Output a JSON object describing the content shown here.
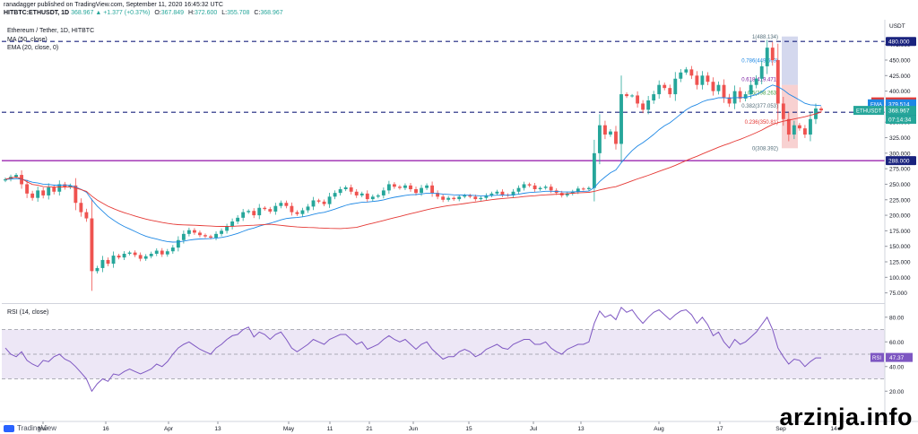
{
  "header": {
    "publisher": "ranadagger published on TradingView.com, September 11, 2020 16:45:32 UTC",
    "symbol": "HITBTC:ETHUSDT, 1D",
    "change": "368.967 ▲ +1.377 (+0.37%)",
    "open_label": "O:",
    "open": "367.849",
    "high_label": "H:",
    "high": "372.600",
    "low_label": "L:",
    "low": "355.708",
    "close_label": "C:",
    "close": "368.967"
  },
  "watermark": "arzinja.info",
  "logo_text": "TradingView",
  "colors": {
    "up": "#26a69a",
    "down": "#ef5350",
    "ma": "#1e88e5",
    "ema": "#e53935",
    "rsi": "#7e57c2",
    "hline_dash": "#1a237e",
    "support": "#9c27b0",
    "rsi_band": "#ede7f6"
  },
  "chart_data": {
    "type": "candlestick",
    "title": "Ethereum / Tether, 1D, HITBTC",
    "price_axis": {
      "ticks": [
        "475.000",
        "450.000",
        "425.000",
        "400.000",
        "375.000",
        "350.000",
        "325.000",
        "300.000",
        "275.000",
        "250.000",
        "225.000",
        "200.000",
        "175.000",
        "150.000",
        "125.000",
        "100.000",
        "75.000"
      ],
      "currency": "USDT",
      "range": [
        60,
        515
      ]
    },
    "time_axis": {
      "labels": [
        "Mar",
        "16",
        "Apr",
        "13",
        "May",
        "11",
        "21",
        "Jun",
        "15",
        "Jul",
        "13",
        "Aug",
        "17",
        "Sep",
        "14"
      ]
    },
    "indicators": [
      {
        "name": "MA (50, close)",
        "value": "382.666",
        "tag": "MA"
      },
      {
        "name": "EMA (20, close, 0)",
        "value": "379.514",
        "tag": "EMA"
      }
    ],
    "last_price": {
      "tag": "ETHUSDT",
      "value": "368.967",
      "countdown": "07:14:34"
    },
    "horizontal_lines": [
      {
        "value": 480,
        "label": "480.000",
        "style": "dashed"
      },
      {
        "value": 366,
        "label": "366.000",
        "style": "dashed"
      },
      {
        "value": 288,
        "label": "288.000",
        "style": "solid"
      }
    ],
    "fibonacci": [
      {
        "level": "1",
        "price": "(488.134)"
      },
      {
        "level": "0.786",
        "price": "(449.669)"
      },
      {
        "level": "0.618",
        "price": "(419.471)"
      },
      {
        "level": "0.5",
        "price": "(398.263)"
      },
      {
        "level": "0.382",
        "price": "(377.053)"
      },
      {
        "level": "0.236",
        "price": "(350.81)"
      },
      {
        "level": "0",
        "price": "(308.392)"
      }
    ],
    "close_series": [
      258,
      262,
      265,
      250,
      235,
      228,
      240,
      232,
      245,
      238,
      250,
      245,
      248,
      220,
      205,
      195,
      110,
      115,
      128,
      122,
      135,
      132,
      138,
      140,
      136,
      130,
      134,
      138,
      143,
      137,
      142,
      148,
      160,
      170,
      176,
      172,
      168,
      166,
      164,
      170,
      175,
      182,
      190,
      196,
      205,
      207,
      200,
      212,
      210,
      206,
      215,
      220,
      215,
      205,
      202,
      208,
      214,
      224,
      222,
      218,
      230,
      236,
      242,
      245,
      238,
      232,
      235,
      226,
      230,
      232,
      240,
      250,
      246,
      244,
      248,
      242,
      236,
      244,
      248,
      236,
      230,
      225,
      228,
      226,
      230,
      232,
      230,
      226,
      228,
      232,
      235,
      238,
      233,
      232,
      238,
      244,
      250,
      248,
      242,
      244,
      246,
      240,
      236,
      232,
      235,
      238,
      243,
      242,
      244,
      300,
      345,
      330,
      335,
      315,
      395,
      392,
      393,
      380,
      370,
      385,
      395,
      410,
      405,
      395,
      420,
      430,
      435,
      425,
      410,
      425,
      415,
      400,
      410,
      390,
      380,
      400,
      388,
      395,
      410,
      420,
      440,
      470,
      450,
      380,
      355,
      330,
      345,
      340,
      330,
      355,
      372,
      369
    ],
    "rsi": {
      "label": "RSI (14, close)",
      "value": "47.37",
      "ticks": [
        "80.00",
        "60.00",
        "40.00",
        "20.00"
      ],
      "band": [
        30,
        70
      ],
      "values": [
        55,
        50,
        48,
        52,
        45,
        42,
        40,
        45,
        44,
        48,
        50,
        46,
        44,
        40,
        35,
        30,
        20,
        26,
        30,
        28,
        34,
        33,
        36,
        38,
        36,
        34,
        36,
        38,
        42,
        40,
        44,
        50,
        55,
        58,
        60,
        57,
        54,
        52,
        50,
        55,
        58,
        62,
        65,
        66,
        70,
        72,
        64,
        68,
        66,
        62,
        66,
        68,
        62,
        55,
        52,
        55,
        58,
        62,
        60,
        58,
        62,
        64,
        66,
        66,
        62,
        58,
        60,
        54,
        56,
        58,
        62,
        65,
        62,
        60,
        62,
        58,
        54,
        58,
        60,
        54,
        50,
        46,
        48,
        48,
        52,
        54,
        52,
        48,
        50,
        54,
        56,
        58,
        55,
        54,
        58,
        60,
        62,
        62,
        58,
        58,
        60,
        55,
        52,
        50,
        54,
        56,
        58,
        58,
        60,
        75,
        85,
        80,
        82,
        78,
        88,
        84,
        86,
        80,
        75,
        80,
        84,
        86,
        82,
        78,
        82,
        85,
        86,
        82,
        75,
        80,
        74,
        65,
        68,
        60,
        55,
        62,
        58,
        60,
        64,
        68,
        74,
        80,
        70,
        55,
        48,
        42,
        46,
        45,
        40,
        44,
        47,
        47
      ]
    }
  }
}
